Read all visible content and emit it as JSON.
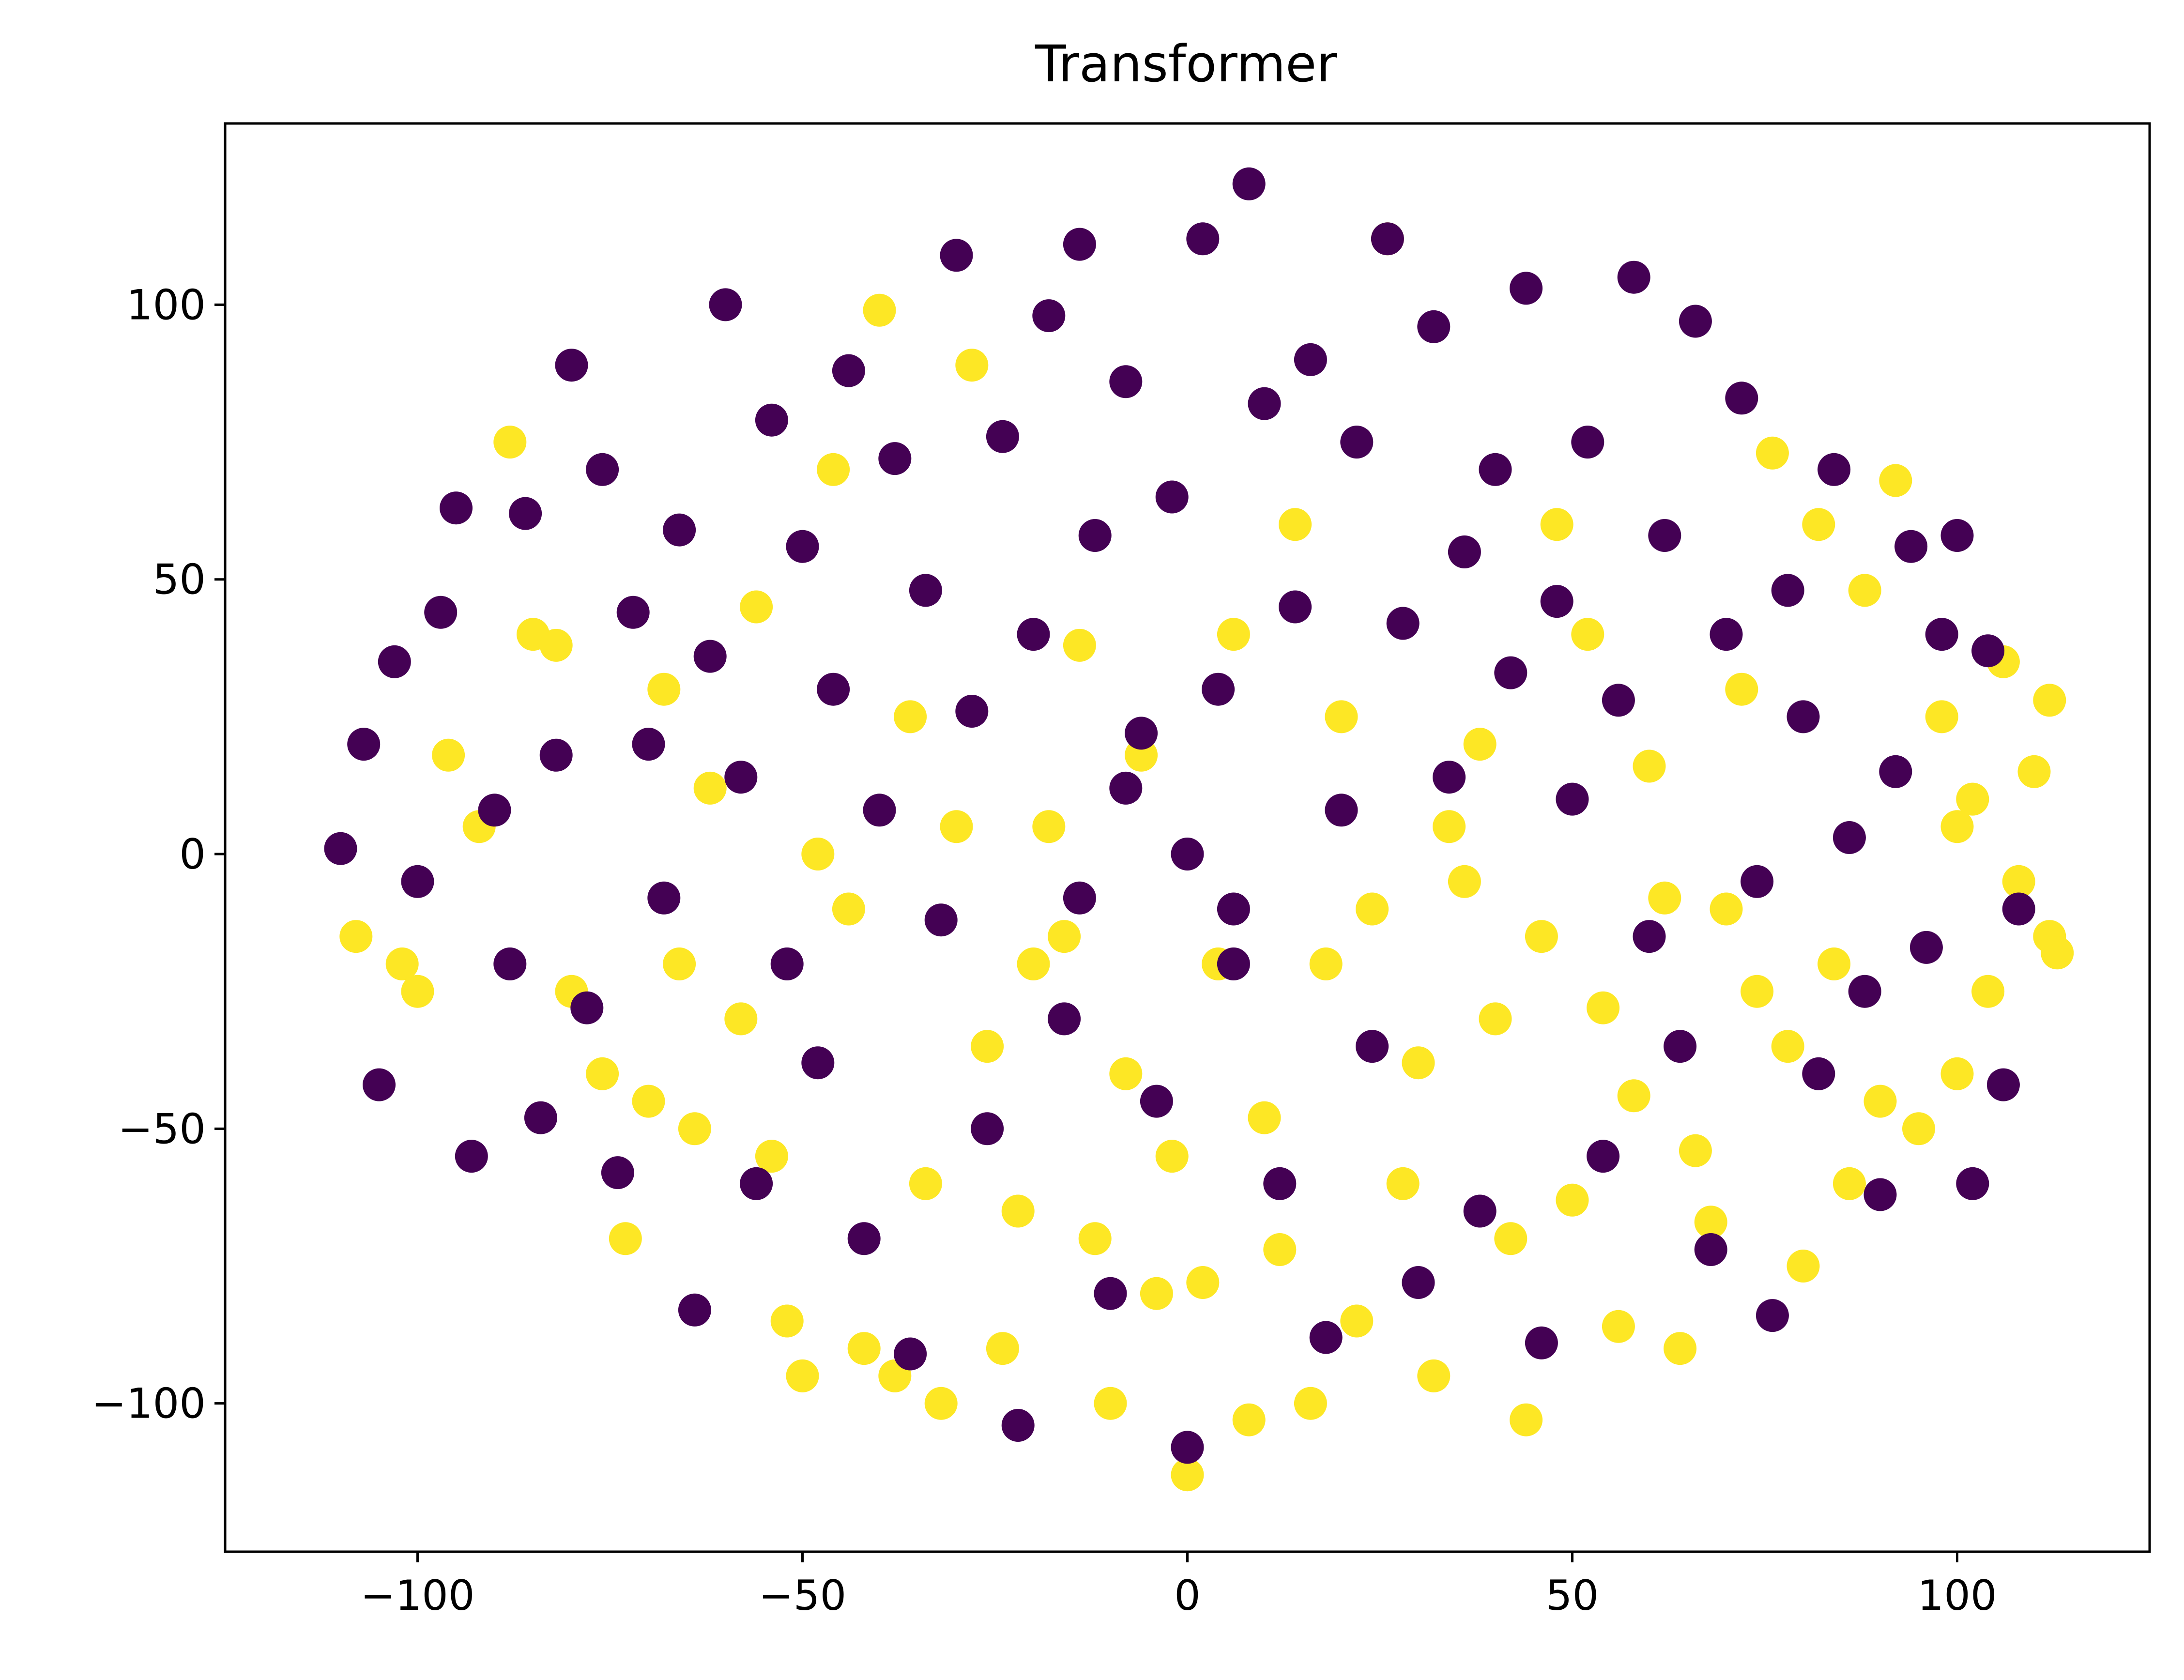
{
  "chart_data": {
    "type": "scatter",
    "title": "Transformer",
    "xlabel": "",
    "ylabel": "",
    "xlim": [
      -125,
      125
    ],
    "ylim": [
      -127,
      133
    ],
    "xticks": [
      -100,
      -50,
      0,
      50,
      100
    ],
    "yticks": [
      -100,
      -50,
      0,
      50,
      100
    ],
    "xtick_labels": [
      "−100",
      "−50",
      "0",
      "50",
      "100"
    ],
    "ytick_labels": [
      "−100",
      "−50",
      "0",
      "50",
      "100"
    ],
    "grid": false,
    "legend": "none",
    "series": [
      {
        "color": "#fde725",
        "points": [
          [
            -108,
            -15
          ],
          [
            -102,
            -20
          ],
          [
            -100,
            -25
          ],
          [
            -96,
            18
          ],
          [
            -92,
            5
          ],
          [
            -88,
            75
          ],
          [
            -85,
            40
          ],
          [
            -82,
            38
          ],
          [
            -80,
            -25
          ],
          [
            -76,
            -40
          ],
          [
            -73,
            -70
          ],
          [
            -70,
            -45
          ],
          [
            -68,
            30
          ],
          [
            -66,
            -20
          ],
          [
            -64,
            -50
          ],
          [
            -62,
            12
          ],
          [
            -58,
            -30
          ],
          [
            -56,
            45
          ],
          [
            -54,
            -55
          ],
          [
            -52,
            -85
          ],
          [
            -50,
            -95
          ],
          [
            -48,
            0
          ],
          [
            -46,
            70
          ],
          [
            -44,
            -10
          ],
          [
            -42,
            -90
          ],
          [
            -40,
            99
          ],
          [
            -38,
            -95
          ],
          [
            -36,
            25
          ],
          [
            -34,
            -60
          ],
          [
            -32,
            -100
          ],
          [
            -30,
            5
          ],
          [
            -28,
            89
          ],
          [
            -26,
            -35
          ],
          [
            -24,
            -90
          ],
          [
            -22,
            -65
          ],
          [
            -20,
            -20
          ],
          [
            -18,
            5
          ],
          [
            -16,
            -15
          ],
          [
            -14,
            38
          ],
          [
            -12,
            -70
          ],
          [
            -10,
            -100
          ],
          [
            -8,
            -40
          ],
          [
            -6,
            18
          ],
          [
            -4,
            -80
          ],
          [
            -2,
            -55
          ],
          [
            0,
            -113
          ],
          [
            2,
            -78
          ],
          [
            4,
            -20
          ],
          [
            6,
            40
          ],
          [
            8,
            -103
          ],
          [
            10,
            -48
          ],
          [
            12,
            -72
          ],
          [
            14,
            60
          ],
          [
            16,
            -100
          ],
          [
            18,
            -20
          ],
          [
            20,
            25
          ],
          [
            22,
            -85
          ],
          [
            24,
            -10
          ],
          [
            26,
            112
          ],
          [
            28,
            -60
          ],
          [
            30,
            -38
          ],
          [
            32,
            -95
          ],
          [
            34,
            5
          ],
          [
            36,
            -5
          ],
          [
            38,
            20
          ],
          [
            40,
            -30
          ],
          [
            42,
            -70
          ],
          [
            44,
            -103
          ],
          [
            46,
            -15
          ],
          [
            48,
            60
          ],
          [
            50,
            -63
          ],
          [
            52,
            40
          ],
          [
            54,
            -28
          ],
          [
            56,
            -86
          ],
          [
            58,
            -44
          ],
          [
            60,
            16
          ],
          [
            62,
            -8
          ],
          [
            64,
            -90
          ],
          [
            66,
            -54
          ],
          [
            68,
            -67
          ],
          [
            70,
            -10
          ],
          [
            72,
            30
          ],
          [
            74,
            -25
          ],
          [
            76,
            73
          ],
          [
            78,
            -35
          ],
          [
            80,
            -75
          ],
          [
            82,
            60
          ],
          [
            84,
            -20
          ],
          [
            86,
            -60
          ],
          [
            88,
            48
          ],
          [
            90,
            -45
          ],
          [
            92,
            68
          ],
          [
            95,
            -50
          ],
          [
            98,
            25
          ],
          [
            100,
            -40
          ],
          [
            102,
            10
          ],
          [
            104,
            -25
          ],
          [
            106,
            35
          ],
          [
            108,
            -5
          ],
          [
            110,
            15
          ],
          [
            112,
            -15
          ],
          [
            112,
            28
          ],
          [
            113,
            -18
          ],
          [
            100,
            5
          ]
        ]
      },
      {
        "color": "#440154",
        "points": [
          [
            -110,
            1
          ],
          [
            -107,
            20
          ],
          [
            -105,
            -42
          ],
          [
            -103,
            35
          ],
          [
            -100,
            -5
          ],
          [
            -97,
            44
          ],
          [
            -95,
            63
          ],
          [
            -93,
            -55
          ],
          [
            -90,
            8
          ],
          [
            -88,
            -20
          ],
          [
            -86,
            62
          ],
          [
            -84,
            -48
          ],
          [
            -82,
            18
          ],
          [
            -80,
            89
          ],
          [
            -78,
            -28
          ],
          [
            -76,
            70
          ],
          [
            -74,
            -58
          ],
          [
            -72,
            44
          ],
          [
            -70,
            20
          ],
          [
            -68,
            -8
          ],
          [
            -66,
            59
          ],
          [
            -64,
            -83
          ],
          [
            -62,
            36
          ],
          [
            -60,
            100
          ],
          [
            -58,
            14
          ],
          [
            -56,
            -60
          ],
          [
            -54,
            79
          ],
          [
            -52,
            -20
          ],
          [
            -50,
            56
          ],
          [
            -48,
            -38
          ],
          [
            -46,
            30
          ],
          [
            -44,
            88
          ],
          [
            -42,
            -70
          ],
          [
            -40,
            8
          ],
          [
            -38,
            72
          ],
          [
            -36,
            -91
          ],
          [
            -34,
            48
          ],
          [
            -32,
            -12
          ],
          [
            -30,
            109
          ],
          [
            -28,
            26
          ],
          [
            -26,
            -50
          ],
          [
            -24,
            76
          ],
          [
            -22,
            -104
          ],
          [
            -20,
            40
          ],
          [
            -18,
            98
          ],
          [
            -16,
            -30
          ],
          [
            -14,
            111
          ],
          [
            -12,
            58
          ],
          [
            -10,
            -80
          ],
          [
            -8,
            86
          ],
          [
            -6,
            22
          ],
          [
            -4,
            -45
          ],
          [
            -2,
            65
          ],
          [
            0,
            -108
          ],
          [
            2,
            112
          ],
          [
            4,
            30
          ],
          [
            6,
            -20
          ],
          [
            8,
            122
          ],
          [
            10,
            82
          ],
          [
            12,
            -60
          ],
          [
            14,
            45
          ],
          [
            16,
            90
          ],
          [
            18,
            -88
          ],
          [
            20,
            8
          ],
          [
            22,
            75
          ],
          [
            24,
            -35
          ],
          [
            26,
            112
          ],
          [
            28,
            42
          ],
          [
            30,
            -78
          ],
          [
            32,
            96
          ],
          [
            34,
            14
          ],
          [
            36,
            55
          ],
          [
            38,
            -65
          ],
          [
            40,
            70
          ],
          [
            42,
            33
          ],
          [
            44,
            103
          ],
          [
            46,
            -89
          ],
          [
            48,
            46
          ],
          [
            50,
            10
          ],
          [
            52,
            75
          ],
          [
            54,
            -55
          ],
          [
            56,
            28
          ],
          [
            58,
            105
          ],
          [
            60,
            -15
          ],
          [
            62,
            58
          ],
          [
            64,
            -35
          ],
          [
            66,
            97
          ],
          [
            68,
            -72
          ],
          [
            70,
            40
          ],
          [
            72,
            83
          ],
          [
            74,
            -5
          ],
          [
            76,
            -84
          ],
          [
            78,
            48
          ],
          [
            80,
            25
          ],
          [
            82,
            -40
          ],
          [
            84,
            70
          ],
          [
            86,
            3
          ],
          [
            88,
            -25
          ],
          [
            90,
            -62
          ],
          [
            92,
            15
          ],
          [
            94,
            56
          ],
          [
            96,
            -17
          ],
          [
            98,
            40
          ],
          [
            100,
            58
          ],
          [
            102,
            -60
          ],
          [
            104,
            37
          ],
          [
            106,
            -42
          ],
          [
            108,
            -10
          ],
          [
            0,
            0
          ],
          [
            -8,
            12
          ],
          [
            6,
            -10
          ],
          [
            -14,
            -8
          ]
        ]
      }
    ]
  }
}
